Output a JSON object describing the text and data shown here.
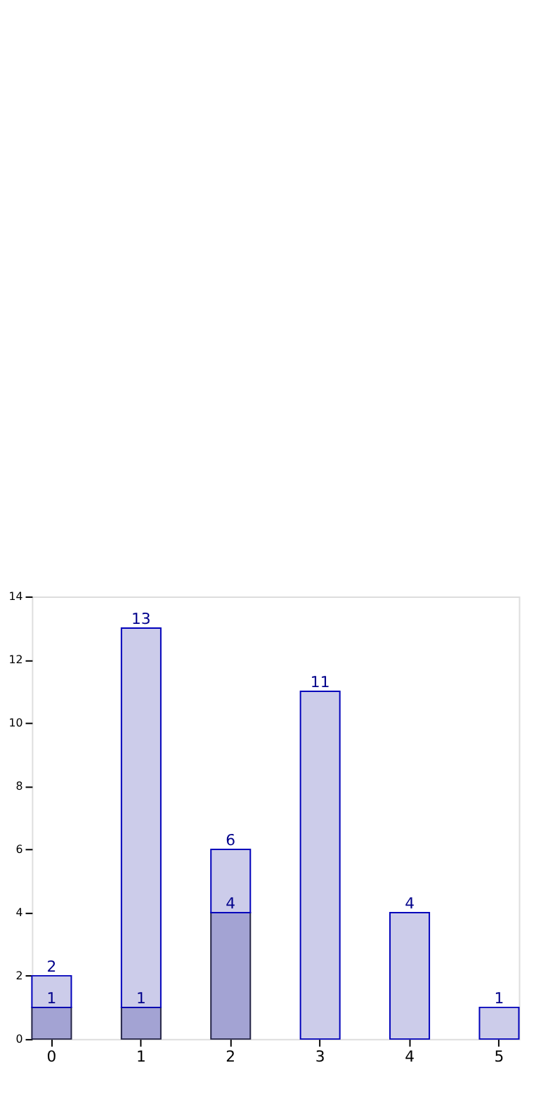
{
  "chart_data": {
    "type": "bar",
    "categories": [
      "0",
      "1",
      "2",
      "3",
      "4",
      "5"
    ],
    "stacked": true,
    "series": [
      {
        "color": "#a3a3d3",
        "values": [
          1,
          1,
          4,
          null,
          null,
          null
        ],
        "value_labels": [
          "1",
          "1",
          "4",
          null,
          null,
          null
        ]
      },
      {
        "color": "#ccccea",
        "values": [
          1,
          12,
          2,
          11,
          4,
          1
        ]
      }
    ],
    "totals": [
      "2",
      "13",
      "6",
      "11",
      "4",
      "1"
    ],
    "ylim": [
      0,
      14
    ],
    "yticks": [
      0,
      2,
      4,
      6,
      8,
      10,
      12,
      14
    ],
    "grid": false
  }
}
